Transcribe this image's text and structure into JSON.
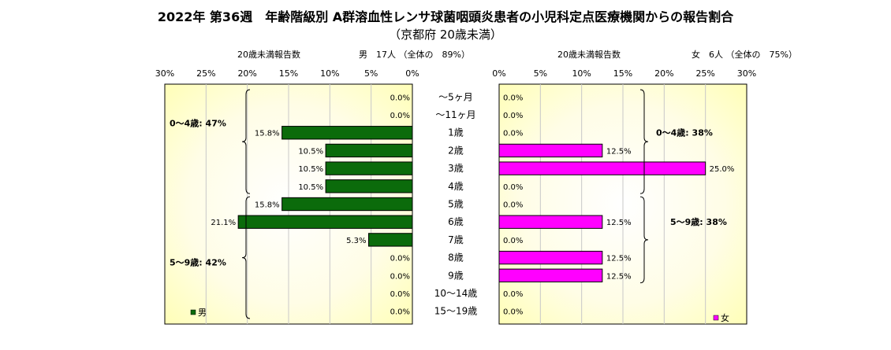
{
  "chart_data": {
    "type": "bar",
    "title": "2022年 第36週　年齢階級別 A群溶血性レンサ球菌咽頭炎患者の小児科定点医療機関からの報告割合",
    "subtitle": "（京都府 20歳未満）",
    "categories": [
      "～5ヶ月",
      "～11ヶ月",
      "1歳",
      "2歳",
      "3歳",
      "4歳",
      "5歳",
      "6歳",
      "7歳",
      "8歳",
      "9歳",
      "10～14歳",
      "15～19歳"
    ],
    "xlim": [
      0,
      30
    ],
    "ticks": [
      "0%",
      "5%",
      "10%",
      "15%",
      "20%",
      "25%",
      "30%"
    ],
    "background": "yellow radial gradient",
    "male": {
      "header_label": "20歳未満報告数",
      "header_summary": "男　17人 （全体の　89%）",
      "legend": "男",
      "color": "#0b6b0b",
      "values": [
        0.0,
        0.0,
        15.8,
        10.5,
        10.5,
        10.5,
        15.8,
        21.1,
        5.3,
        0.0,
        0.0,
        0.0,
        0.0
      ],
      "labels": [
        "0.0%",
        "0.0%",
        "15.8%",
        "10.5%",
        "10.5%",
        "10.5%",
        "15.8%",
        "21.1%",
        "5.3%",
        "0.0%",
        "0.0%",
        "0.0%",
        "0.0%"
      ],
      "group_labels": [
        "0～4歳: 47%",
        "5～9歳: 42%"
      ]
    },
    "female": {
      "header_label": "20歳未満報告数",
      "header_summary": "女　6人 （全体の　75%）",
      "legend": "女",
      "color": "#ff00ff",
      "values": [
        0.0,
        0.0,
        0.0,
        12.5,
        25.0,
        0.0,
        0.0,
        12.5,
        0.0,
        12.5,
        12.5,
        0.0,
        0.0
      ],
      "labels": [
        "0.0%",
        "0.0%",
        "0.0%",
        "12.5%",
        "25.0%",
        "0.0%",
        "0.0%",
        "12.5%",
        "0.0%",
        "12.5%",
        "12.5%",
        "0.0%",
        "0.0%"
      ],
      "group_labels": [
        "0～4歳: 38%",
        "5～9歳: 38%"
      ]
    }
  }
}
